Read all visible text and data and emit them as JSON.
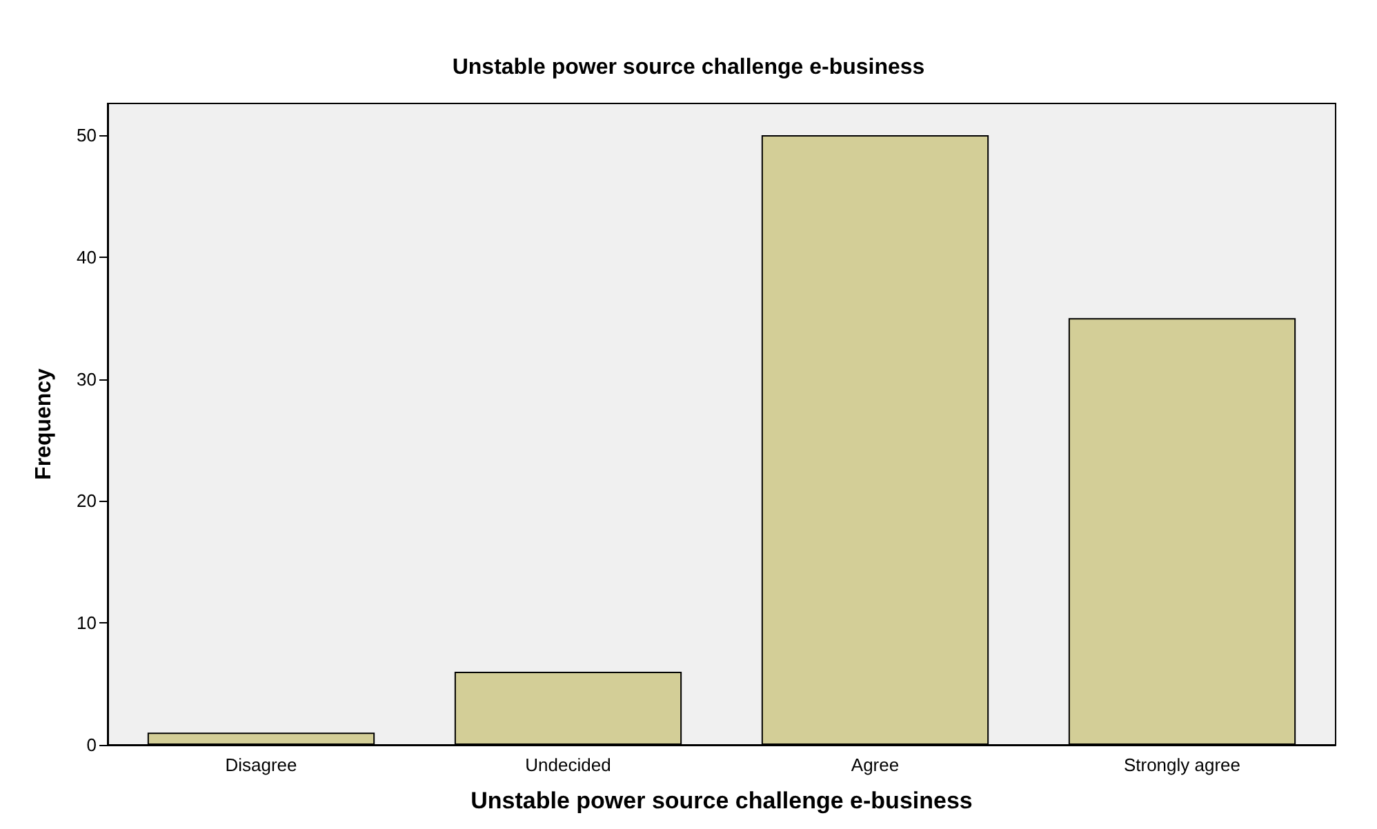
{
  "chart_data": {
    "type": "bar",
    "title": "Unstable power source challenge e-business",
    "xlabel": "Unstable power source challenge e-business",
    "ylabel": "Frequency",
    "categories": [
      "Disagree",
      "Undecided",
      "Agree",
      "Strongly agree"
    ],
    "values": [
      1,
      6,
      50,
      35
    ],
    "color": "#d3ce97",
    "ylim": [
      0,
      52.6
    ],
    "yticks": [
      0,
      10,
      20,
      30,
      40,
      50
    ],
    "grid": false
  }
}
